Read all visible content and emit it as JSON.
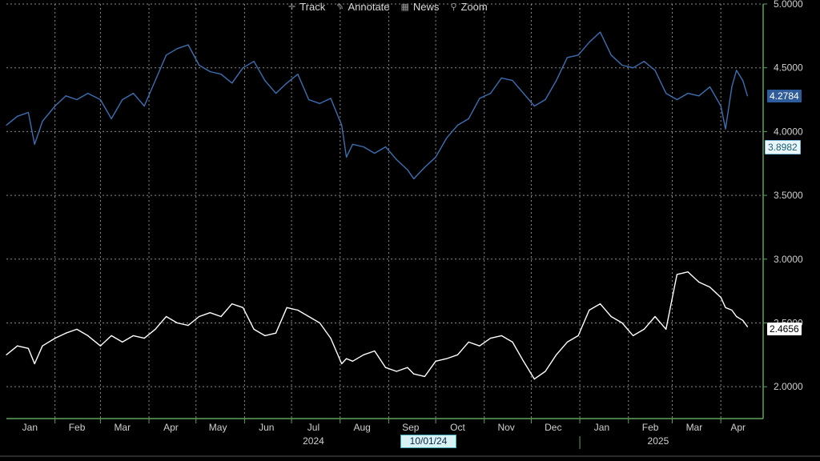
{
  "toolbar": {
    "items": [
      {
        "label": "Track",
        "icon": "crosshair-icon"
      },
      {
        "label": "Annotate",
        "icon": "pencil-icon"
      },
      {
        "label": "News",
        "icon": "news-icon"
      },
      {
        "label": "Zoom",
        "icon": "magnifier-icon"
      }
    ]
  },
  "colors": {
    "background": "#000000",
    "series1": "#3d6fb2",
    "series2": "#ffffff",
    "axis": "#5fa35f",
    "grid": "#8a8a8a"
  },
  "date_marker": "10/01/24",
  "chart_data": {
    "type": "line",
    "title": "",
    "xlabel": "",
    "ylabel": "",
    "ylim": [
      1.75,
      5.0
    ],
    "yticks": [
      "2.0000",
      "2.5000",
      "3.0000",
      "3.5000",
      "4.0000",
      "4.5000",
      "5.0000"
    ],
    "month_labels": [
      "Jan",
      "Feb",
      "Mar",
      "Apr",
      "May",
      "Jun",
      "Jul",
      "Aug",
      "Sep",
      "Oct",
      "Nov",
      "Dec",
      "Jan",
      "Feb",
      "Mar",
      "Apr"
    ],
    "year_labels": [
      "2024",
      "2025"
    ],
    "grid": true,
    "series": [
      {
        "last_value_label": "4.2784",
        "secondary_label": "3.8982",
        "x": [
          "2024-01-01",
          "2024-01-08",
          "2024-01-15",
          "2024-01-19",
          "2024-01-24",
          "2024-02-01",
          "2024-02-08",
          "2024-02-15",
          "2024-02-22",
          "2024-03-01",
          "2024-03-08",
          "2024-03-15",
          "2024-03-22",
          "2024-03-29",
          "2024-04-05",
          "2024-04-12",
          "2024-04-19",
          "2024-04-26",
          "2024-05-03",
          "2024-05-10",
          "2024-05-17",
          "2024-05-24",
          "2024-05-31",
          "2024-06-07",
          "2024-06-14",
          "2024-06-21",
          "2024-06-28",
          "2024-07-05",
          "2024-07-12",
          "2024-07-19",
          "2024-07-26",
          "2024-08-02",
          "2024-08-05",
          "2024-08-09",
          "2024-08-16",
          "2024-08-23",
          "2024-08-30",
          "2024-09-06",
          "2024-09-13",
          "2024-09-17",
          "2024-09-24",
          "2024-10-01",
          "2024-10-08",
          "2024-10-15",
          "2024-10-22",
          "2024-10-29",
          "2024-11-05",
          "2024-11-12",
          "2024-11-19",
          "2024-11-26",
          "2024-12-03",
          "2024-12-10",
          "2024-12-17",
          "2024-12-24",
          "2024-12-31",
          "2025-01-07",
          "2025-01-14",
          "2025-01-21",
          "2025-01-28",
          "2025-02-04",
          "2025-02-11",
          "2025-02-18",
          "2025-02-25",
          "2025-03-04",
          "2025-03-11",
          "2025-03-18",
          "2025-03-25",
          "2025-04-01",
          "2025-04-04",
          "2025-04-08",
          "2025-04-11",
          "2025-04-15",
          "2025-04-18"
        ],
        "values": [
          4.05,
          4.12,
          4.15,
          3.9,
          4.08,
          4.2,
          4.28,
          4.25,
          4.3,
          4.25,
          4.1,
          4.25,
          4.3,
          4.2,
          4.4,
          4.6,
          4.65,
          4.68,
          4.52,
          4.47,
          4.45,
          4.38,
          4.5,
          4.55,
          4.4,
          4.3,
          4.38,
          4.45,
          4.25,
          4.22,
          4.26,
          4.05,
          3.8,
          3.9,
          3.88,
          3.83,
          3.88,
          3.78,
          3.7,
          3.63,
          3.72,
          3.8,
          3.95,
          4.05,
          4.1,
          4.26,
          4.3,
          4.42,
          4.4,
          4.3,
          4.2,
          4.25,
          4.4,
          4.58,
          4.6,
          4.7,
          4.78,
          4.6,
          4.52,
          4.5,
          4.55,
          4.48,
          4.3,
          4.25,
          4.3,
          4.28,
          4.35,
          4.2,
          4.02,
          4.35,
          4.48,
          4.4,
          4.28
        ]
      },
      {
        "last_value_label": "2.4656",
        "x": [
          "2024-01-01",
          "2024-01-08",
          "2024-01-15",
          "2024-01-19",
          "2024-01-24",
          "2024-02-01",
          "2024-02-08",
          "2024-02-15",
          "2024-02-22",
          "2024-03-01",
          "2024-03-08",
          "2024-03-15",
          "2024-03-22",
          "2024-03-29",
          "2024-04-05",
          "2024-04-12",
          "2024-04-19",
          "2024-04-26",
          "2024-05-03",
          "2024-05-10",
          "2024-05-17",
          "2024-05-24",
          "2024-05-31",
          "2024-06-07",
          "2024-06-14",
          "2024-06-21",
          "2024-06-28",
          "2024-07-05",
          "2024-07-12",
          "2024-07-19",
          "2024-07-26",
          "2024-08-02",
          "2024-08-05",
          "2024-08-09",
          "2024-08-16",
          "2024-08-23",
          "2024-08-30",
          "2024-09-06",
          "2024-09-13",
          "2024-09-17",
          "2024-09-24",
          "2024-10-01",
          "2024-10-08",
          "2024-10-15",
          "2024-10-22",
          "2024-10-29",
          "2024-11-05",
          "2024-11-12",
          "2024-11-19",
          "2024-11-26",
          "2024-12-03",
          "2024-12-10",
          "2024-12-17",
          "2024-12-24",
          "2024-12-31",
          "2025-01-07",
          "2025-01-14",
          "2025-01-21",
          "2025-01-28",
          "2025-02-04",
          "2025-02-11",
          "2025-02-18",
          "2025-02-25",
          "2025-03-04",
          "2025-03-11",
          "2025-03-18",
          "2025-03-25",
          "2025-04-01",
          "2025-04-04",
          "2025-04-08",
          "2025-04-11",
          "2025-04-15",
          "2025-04-18"
        ],
        "values": [
          2.25,
          2.32,
          2.3,
          2.18,
          2.32,
          2.38,
          2.42,
          2.45,
          2.4,
          2.32,
          2.4,
          2.35,
          2.4,
          2.38,
          2.45,
          2.55,
          2.5,
          2.48,
          2.55,
          2.58,
          2.55,
          2.65,
          2.62,
          2.45,
          2.4,
          2.42,
          2.62,
          2.6,
          2.55,
          2.5,
          2.38,
          2.18,
          2.22,
          2.2,
          2.25,
          2.28,
          2.15,
          2.12,
          2.15,
          2.1,
          2.08,
          2.2,
          2.22,
          2.25,
          2.35,
          2.32,
          2.38,
          2.4,
          2.35,
          2.2,
          2.06,
          2.12,
          2.25,
          2.35,
          2.4,
          2.6,
          2.65,
          2.55,
          2.5,
          2.4,
          2.45,
          2.55,
          2.45,
          2.88,
          2.9,
          2.82,
          2.78,
          2.7,
          2.62,
          2.6,
          2.55,
          2.52,
          2.47
        ]
      }
    ]
  }
}
